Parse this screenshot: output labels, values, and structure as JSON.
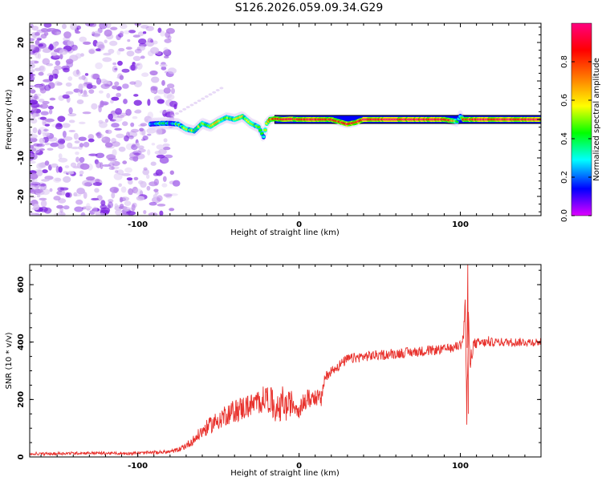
{
  "title": "S126.2026.059.09.34.G29",
  "colors": {
    "snr_line": "#e8322d",
    "axis": "#000000",
    "noise_scatter": "#8a2be2",
    "track_outline": "#000000"
  },
  "chart_data": [
    {
      "type": "heatmap",
      "name": "spectrogram",
      "xlabel": "Height of straight line (km)",
      "ylabel": "Frequency (Hz)",
      "xlim": [
        -167,
        150
      ],
      "ylim": [
        -25,
        25
      ],
      "xticks": [
        -100,
        0,
        100
      ],
      "xtick_labels": [
        "-100",
        "0",
        "100"
      ],
      "yticks": [
        -20,
        -10,
        0,
        10,
        20
      ],
      "ytick_labels": [
        "-20",
        "-10",
        "0",
        "10",
        "20"
      ],
      "colorbar": {
        "label": "Normalized spectral amplitude",
        "range": [
          0,
          1
        ],
        "ticks": [
          0.0,
          0.2,
          0.4,
          0.6,
          0.8
        ],
        "tick_labels": [
          "0.0",
          "0.2",
          "0.4",
          "0.6",
          "0.8"
        ],
        "colormap": [
          "#e000ff",
          "#0000ff",
          "#00ffff",
          "#00ff00",
          "#ffff00",
          "#ff8000",
          "#ff0000",
          "#ff0080"
        ]
      },
      "noise_region_x": [
        -167,
        -80
      ],
      "track": {
        "x": [
          -92,
          -85,
          -80,
          -75,
          -70,
          -65,
          -60,
          -55,
          -50,
          -45,
          -40,
          -35,
          -30,
          -25,
          -22,
          -20,
          -18,
          -15,
          -10,
          -5,
          0,
          10,
          20,
          25,
          30,
          35,
          40,
          50,
          60,
          70,
          80,
          90,
          98,
          100,
          102,
          110,
          120,
          130,
          140,
          150
        ],
        "freq": [
          -1.2,
          -1.0,
          -1.0,
          -1.2,
          -2.5,
          -3.0,
          -1.0,
          -1.8,
          -0.5,
          0.5,
          0.0,
          0.8,
          -1.0,
          -2.0,
          -4.5,
          -1.0,
          0.0,
          0.2,
          0.0,
          0.1,
          0.0,
          0.0,
          0.0,
          -0.6,
          -1.2,
          -0.8,
          0.0,
          0.0,
          0.0,
          0.0,
          0.0,
          0.0,
          -0.5,
          0.8,
          0.0,
          0.0,
          0.0,
          0.0,
          0.0,
          0.0
        ],
        "amp": [
          0.25,
          0.35,
          0.3,
          0.4,
          0.45,
          0.5,
          0.45,
          0.5,
          0.6,
          0.55,
          0.5,
          0.55,
          0.5,
          0.45,
          0.35,
          0.55,
          0.7,
          0.85,
          0.9,
          0.85,
          0.9,
          0.85,
          0.9,
          0.85,
          0.9,
          0.9,
          0.95,
          0.95,
          0.95,
          0.95,
          0.95,
          0.95,
          0.5,
          0.35,
          0.8,
          0.95,
          0.95,
          0.95,
          0.95,
          0.95
        ]
      }
    },
    {
      "type": "line",
      "name": "snr",
      "xlabel": "Height of straight line (km)",
      "ylabel": "SNR (10 * v/v)",
      "xlim": [
        -167,
        150
      ],
      "ylim": [
        0,
        670
      ],
      "xticks": [
        -100,
        0,
        100
      ],
      "xtick_labels": [
        "-100",
        "0",
        "100"
      ],
      "yticks": [
        0,
        200,
        400,
        600
      ],
      "ytick_labels": [
        "0",
        "200",
        "400",
        "600"
      ],
      "series": [
        {
          "name": "SNR",
          "x": [
            -167,
            -150,
            -130,
            -110,
            -90,
            -80,
            -75,
            -70,
            -65,
            -60,
            -55,
            -50,
            -45,
            -40,
            -35,
            -30,
            -25,
            -20,
            -15,
            -12,
            -10,
            -8,
            -5,
            0,
            5,
            10,
            14,
            15,
            16,
            18,
            20,
            25,
            30,
            40,
            50,
            60,
            70,
            80,
            90,
            95,
            100,
            102,
            103,
            104,
            105,
            106,
            108,
            110,
            120,
            130,
            140,
            150
          ],
          "y": [
            10,
            12,
            14,
            12,
            15,
            18,
            25,
            40,
            60,
            90,
            110,
            130,
            150,
            160,
            170,
            180,
            190,
            210,
            170,
            160,
            200,
            170,
            190,
            170,
            200,
            210,
            200,
            250,
            270,
            290,
            300,
            320,
            340,
            350,
            355,
            360,
            365,
            370,
            375,
            380,
            390,
            420,
            560,
            120,
            470,
            330,
            390,
            395,
            400,
            400,
            400,
            400
          ],
          "noise": [
            4,
            5,
            5,
            5,
            6,
            7,
            8,
            12,
            18,
            25,
            30,
            35,
            40,
            40,
            45,
            40,
            45,
            45,
            60,
            50,
            55,
            50,
            45,
            35,
            35,
            30,
            30,
            25,
            20,
            18,
            18,
            18,
            18,
            18,
            18,
            18,
            18,
            18,
            16,
            16,
            18,
            25,
            40,
            40,
            40,
            30,
            25,
            18,
            15,
            15,
            15,
            15
          ]
        }
      ]
    }
  ]
}
